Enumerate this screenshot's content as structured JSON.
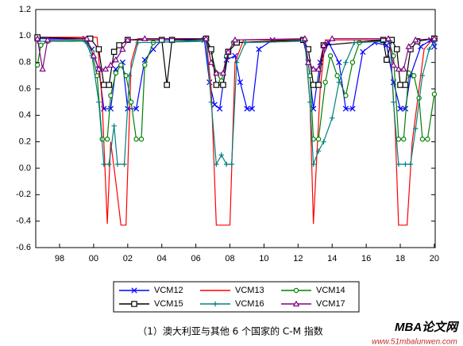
{
  "chart_data": {
    "type": "line",
    "caption": "（1）澳大利亚与其他 6 个国家的 C-M 指数",
    "watermark": "MBA论文网",
    "watermark_url": "www.51mbalunwen.com",
    "xlim": [
      1996.6,
      2020.05
    ],
    "xticks": [
      {
        "value": 1998,
        "label": "98"
      },
      {
        "value": 2000,
        "label": "00"
      },
      {
        "value": 2002,
        "label": "02"
      },
      {
        "value": 2004,
        "label": "04"
      },
      {
        "value": 2006,
        "label": "06"
      },
      {
        "value": 2008,
        "label": "08"
      },
      {
        "value": 2010,
        "label": "10"
      },
      {
        "value": 2012,
        "label": "12"
      },
      {
        "value": 2014,
        "label": "14"
      },
      {
        "value": 2016,
        "label": "16"
      },
      {
        "value": 2018,
        "label": "18"
      },
      {
        "value": 2020,
        "label": "20"
      }
    ],
    "ylim": [
      -0.6,
      1.2
    ],
    "yticks": [
      -0.6,
      -0.4,
      -0.2,
      {
        "value": 0,
        "label": "0.0"
      },
      0.2,
      0.4,
      0.6,
      0.8,
      {
        "value": 1,
        "label": "1.0"
      },
      1.2
    ],
    "grid": false,
    "series": [
      {
        "name": "VCM12",
        "color": "#0000ff",
        "marker": "x",
        "x": [
          1996.7,
          1999.5,
          1999.9,
          2000.3,
          2000.6,
          2001.0,
          2001.3,
          2001.7,
          2002.0,
          2002.5,
          2003.0,
          2003.5,
          2004,
          2006.5,
          2006.8,
          2007.1,
          2007.4,
          2007.8,
          2008.3,
          2008.6,
          2009.0,
          2009.3,
          2009.7,
          2010.5,
          2012.3,
          2012.6,
          2012.9,
          2013.3,
          2013.8,
          2014.4,
          2014.8,
          2015.2,
          2015.8,
          2016.5,
          2017.2,
          2017.6,
          2018.0,
          2018.3,
          2018.6,
          2019.2,
          2019.8,
          2020
        ],
        "values": [
          0.98,
          0.98,
          0.9,
          0.75,
          0.45,
          0.45,
          0.75,
          0.8,
          0.45,
          0.45,
          0.82,
          0.9,
          0.97,
          0.97,
          0.65,
          0.48,
          0.45,
          0.82,
          0.85,
          0.65,
          0.45,
          0.45,
          0.9,
          0.97,
          0.97,
          0.8,
          0.45,
          0.8,
          0.95,
          0.8,
          0.45,
          0.45,
          0.88,
          0.95,
          0.93,
          0.65,
          0.45,
          0.45,
          0.7,
          0.92,
          0.97,
          0.92
        ]
      },
      {
        "name": "VCM13",
        "color": "#ff0000",
        "marker": "none",
        "x": [
          1996.7,
          2000.2,
          2000.5,
          2000.8,
          2001.0,
          2001.3,
          2001.6,
          2001.9,
          2002.2,
          2002.6,
          2006.6,
          2006.9,
          2007.2,
          2008.0,
          2008.3,
          2008.8,
          2012.4,
          2012.7,
          2012.9,
          2013.3,
          2013.6,
          2017.4,
          2017.7,
          2017.9,
          2018.4,
          2018.7,
          2019.0,
          2019.4,
          2020
        ],
        "values": [
          0.99,
          0.99,
          0.5,
          -0.42,
          0.2,
          -0.1,
          -0.43,
          -0.43,
          0.8,
          0.98,
          0.98,
          0.6,
          -0.43,
          -0.43,
          0.8,
          0.97,
          0.97,
          0.5,
          -0.42,
          0.6,
          0.97,
          0.97,
          0.3,
          -0.43,
          -0.43,
          0.2,
          0.5,
          0.9,
          0.99
        ]
      },
      {
        "name": "VCM14",
        "color": "#008000",
        "marker": "circle",
        "x": [
          1996.7,
          1996.9,
          1997.3,
          1999.5,
          1999.9,
          2000.2,
          2000.5,
          2000.8,
          2001.0,
          2001.3,
          2001.6,
          2001.9,
          2002.2,
          2002.5,
          2002.8,
          2003.0,
          2003.5,
          2006.6,
          2006.9,
          2007.2,
          2007.5,
          2007.8,
          2008.2,
          2012.4,
          2012.7,
          2012.9,
          2013.2,
          2013.6,
          2013.9,
          2014.3,
          2014.8,
          2015.2,
          2015.6,
          2017.3,
          2017.6,
          2017.9,
          2018.2,
          2018.5,
          2018.8,
          2019.1,
          2019.3,
          2019.6,
          2020
        ],
        "values": [
          0.78,
          0.93,
          0.96,
          0.97,
          0.88,
          0.7,
          0.22,
          0.22,
          0.55,
          0.72,
          0.78,
          0.7,
          0.5,
          0.22,
          0.22,
          0.78,
          0.95,
          0.97,
          0.88,
          0.72,
          0.66,
          0.85,
          0.95,
          0.97,
          0.7,
          0.22,
          0.22,
          0.65,
          0.85,
          0.7,
          0.55,
          0.8,
          0.95,
          0.97,
          0.85,
          0.22,
          0.22,
          0.72,
          0.7,
          0.53,
          0.22,
          0.22,
          0.56
        ]
      },
      {
        "name": "VCM15",
        "color": "#000000",
        "marker": "square",
        "x": [
          1996.7,
          1999.8,
          2000.3,
          2000.6,
          2000.9,
          2001.2,
          2001.5,
          2002,
          2004.0,
          2004.3,
          2004.6,
          2006.6,
          2006.9,
          2007.2,
          2007.6,
          2007.9,
          2008.4,
          2012.3,
          2012.6,
          2012.9,
          2013.2,
          2013.5,
          2017.0,
          2017.2,
          2017.5,
          2017.8,
          2018.0,
          2018.3,
          2018.6,
          2019.0,
          2020
        ],
        "values": [
          0.99,
          0.98,
          0.9,
          0.63,
          0.63,
          0.88,
          0.93,
          0.97,
          0.97,
          0.63,
          0.97,
          0.98,
          0.9,
          0.63,
          0.63,
          0.88,
          0.95,
          0.97,
          0.9,
          0.63,
          0.63,
          0.93,
          0.97,
          0.82,
          0.97,
          0.9,
          0.63,
          0.63,
          0.9,
          0.96,
          0.98
        ]
      },
      {
        "name": "VCM16",
        "color": "#008080",
        "marker": "plus",
        "x": [
          1996.7,
          1999.5,
          1999.9,
          2000.3,
          2000.6,
          2000.9,
          2001.2,
          2001.4,
          2001.8,
          2002.1,
          2002.6,
          2006.6,
          2006.9,
          2007.2,
          2007.5,
          2007.8,
          2008.1,
          2008.4,
          2008.9,
          2012.4,
          2012.7,
          2012.9,
          2013.2,
          2013.5,
          2014,
          2014.4,
          2014.8,
          2015.3,
          2017.4,
          2017.6,
          2017.9,
          2018.3,
          2018.6,
          2018.9,
          2019.3,
          2019.7,
          2020
        ],
        "values": [
          0.96,
          0.96,
          0.85,
          0.5,
          0.03,
          0.03,
          0.32,
          0.03,
          0.03,
          0.7,
          0.95,
          0.96,
          0.5,
          0.03,
          0.1,
          0.03,
          0.03,
          0.8,
          0.95,
          0.96,
          0.5,
          0.03,
          0.13,
          0.2,
          0.38,
          0.65,
          0.8,
          0.95,
          0.96,
          0.5,
          0.03,
          0.03,
          0.03,
          0.3,
          0.7,
          0.9,
          0.96
        ]
      },
      {
        "name": "VCM17",
        "color": "#800080",
        "marker": "triangle",
        "x": [
          1996.7,
          1997.0,
          1997.3,
          1999.6,
          2000.0,
          2000.3,
          2000.7,
          2001.0,
          2001.3,
          2001.7,
          2002,
          2003,
          2006.6,
          2006.9,
          2007.2,
          2007.6,
          2007.9,
          2008.3,
          2012.4,
          2012.6,
          2012.9,
          2013.2,
          2013.5,
          2014,
          2017.3,
          2017.6,
          2017.9,
          2018.2,
          2018.5,
          2018.9,
          2020
        ],
        "values": [
          0.98,
          0.75,
          0.97,
          0.98,
          0.85,
          0.75,
          0.75,
          0.78,
          0.82,
          0.9,
          0.97,
          0.98,
          0.98,
          0.8,
          0.72,
          0.72,
          0.88,
          0.97,
          0.98,
          0.8,
          0.75,
          0.75,
          0.93,
          0.98,
          0.98,
          0.78,
          0.75,
          0.75,
          0.92,
          0.97,
          0.98
        ]
      }
    ]
  }
}
